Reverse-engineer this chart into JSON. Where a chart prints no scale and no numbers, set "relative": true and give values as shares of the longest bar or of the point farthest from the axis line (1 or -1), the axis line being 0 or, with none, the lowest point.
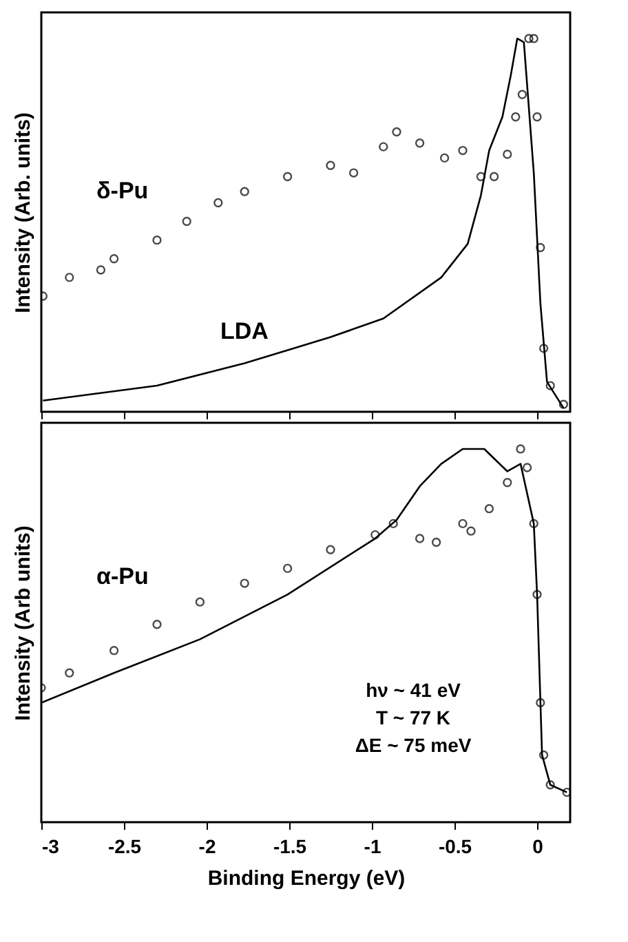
{
  "chart_data": [
    {
      "type": "scatter",
      "relative": true,
      "ylabel": "Intensity (Arb. units)",
      "xlim": [
        -3,
        0.2
      ],
      "xticks": [
        -3,
        -2.5,
        -2,
        -1.5,
        -1,
        -0.5,
        0
      ],
      "tick_labels": false,
      "annotations": [
        "δ-Pu",
        "LDA"
      ],
      "series": [
        {
          "type": "scatter",
          "marker": "circle",
          "color": "#000000",
          "x": [
            -2.99,
            -2.83,
            -2.64,
            -2.56,
            -2.3,
            -2.12,
            -1.93,
            -1.77,
            -1.51,
            -1.25,
            -1.11,
            -0.93,
            -0.85,
            -0.71,
            -0.56,
            -0.45,
            -0.34,
            -0.26,
            -0.18,
            -0.13,
            -0.09,
            -0.05,
            -0.02,
            0,
            0.02,
            0.04,
            0.08,
            0.16
          ],
          "values": [
            0.31,
            0.36,
            0.38,
            0.41,
            0.46,
            0.51,
            0.56,
            0.59,
            0.63,
            0.66,
            0.64,
            0.71,
            0.75,
            0.72,
            0.68,
            0.7,
            0.63,
            0.63,
            0.69,
            0.79,
            0.85,
            1,
            1,
            0.79,
            0.44,
            0.17,
            0.07,
            0.02
          ]
        },
        {
          "type": "line",
          "marker": "none",
          "color": "#000000",
          "x": [
            -2.99,
            -2.3,
            -1.77,
            -1.25,
            -0.93,
            -0.58,
            -0.42,
            -0.34,
            -0.29,
            -0.21,
            -0.16,
            -0.12,
            -0.08,
            -0.02,
            0.02,
            0.06,
            0.16
          ],
          "values": [
            0.03,
            0.07,
            0.13,
            0.2,
            0.25,
            0.36,
            0.45,
            0.58,
            0.7,
            0.79,
            0.9,
            1,
            0.99,
            0.64,
            0.29,
            0.08,
            0.01
          ]
        }
      ]
    },
    {
      "type": "scatter",
      "relative": true,
      "ylabel": "Intensity (Arb units)",
      "xlabel": "Binding Energy (eV)",
      "xlim": [
        -3,
        0.2
      ],
      "xticks": [
        -3,
        -2.5,
        -2,
        -1.5,
        -1,
        -0.5,
        0
      ],
      "tick_labels": "x",
      "annotations": [
        "α-Pu",
        "hν ~ 41 eV",
        "T ~ 77 K",
        "ΔE ~ 75 meV"
      ],
      "series": [
        {
          "type": "scatter",
          "marker": "circle",
          "color": "#000000",
          "x": [
            -3,
            -2.83,
            -2.56,
            -2.3,
            -2.04,
            -1.77,
            -1.51,
            -1.25,
            -0.98,
            -0.87,
            -0.71,
            -0.61,
            -0.45,
            -0.4,
            -0.29,
            -0.18,
            -0.1,
            -0.06,
            -0.02,
            0,
            0.02,
            0.04,
            0.08,
            0.18
          ],
          "values": [
            0.36,
            0.4,
            0.46,
            0.53,
            0.59,
            0.64,
            0.68,
            0.73,
            0.77,
            0.8,
            0.76,
            0.75,
            0.8,
            0.78,
            0.84,
            0.91,
            1,
            0.95,
            0.8,
            0.61,
            0.32,
            0.18,
            0.1,
            0.08
          ]
        },
        {
          "type": "line",
          "marker": "none",
          "color": "#000000",
          "x": [
            -3,
            -2.56,
            -2.04,
            -1.51,
            -0.98,
            -0.85,
            -0.71,
            -0.58,
            -0.45,
            -0.32,
            -0.18,
            -0.1,
            -0.02,
            0,
            0.03,
            0.08,
            0.18
          ],
          "values": [
            0.32,
            0.4,
            0.49,
            0.61,
            0.76,
            0.81,
            0.9,
            0.96,
            1,
            1,
            0.94,
            0.96,
            0.8,
            0.61,
            0.18,
            0.1,
            0.08
          ]
        }
      ]
    }
  ]
}
